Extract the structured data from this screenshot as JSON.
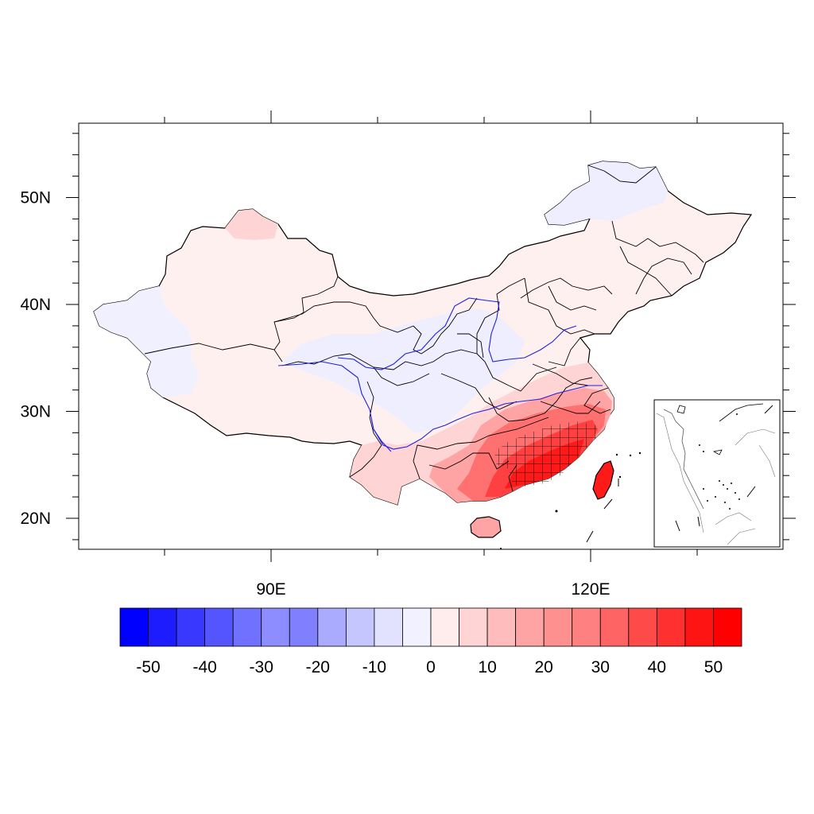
{
  "map": {
    "lat_ticks": [
      {
        "value": 50,
        "label": "50N"
      },
      {
        "value": 40,
        "label": "40N"
      },
      {
        "value": 30,
        "label": "30N"
      },
      {
        "value": 20,
        "label": "20N"
      }
    ],
    "lon_ticks": [
      {
        "value": 90,
        "label": "90E"
      },
      {
        "value": 120,
        "label": "120E"
      }
    ],
    "lon_range": [
      72.5,
      138.5
    ],
    "lat_range": [
      17,
      57
    ],
    "colors": {
      "border": "#000000",
      "river": "#2020e0",
      "hatch": "#000000"
    }
  },
  "colorbar": {
    "labels": [
      "-50",
      "-40",
      "-30",
      "-20",
      "-10",
      "0",
      "10",
      "20",
      "30",
      "40",
      "50"
    ],
    "colors": [
      "#0000ff",
      "#1c1cff",
      "#3838ff",
      "#5555ff",
      "#7171ff",
      "#8d8dff",
      "#8080ff",
      "#aaaaff",
      "#c6c6ff",
      "#e2e2ff",
      "#f1f1ff",
      "#ffecec",
      "#ffd4d4",
      "#ffbcbc",
      "#ffa4a4",
      "#ff9090",
      "#ff8080",
      "#ff6464",
      "#ff4a4a",
      "#ff3030",
      "#ff1414",
      "#ff0000"
    ]
  }
}
